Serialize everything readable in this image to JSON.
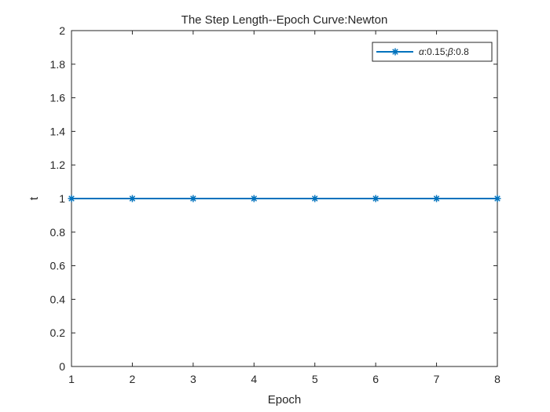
{
  "chart_data": {
    "type": "line",
    "title": "The Step Length--Epoch Curve:Newton",
    "xlabel": "Epoch",
    "ylabel": "t",
    "xlim": [
      1,
      8
    ],
    "ylim": [
      0,
      2
    ],
    "xticks": [
      1,
      2,
      3,
      4,
      5,
      6,
      7,
      8
    ],
    "yticks": [
      0,
      0.2,
      0.4,
      0.6,
      0.8,
      1,
      1.2,
      1.4,
      1.6,
      1.8,
      2
    ],
    "ytick_labels": [
      "0",
      "0.2",
      "0.4",
      "0.6",
      "0.8",
      "1",
      "1.2",
      "1.4",
      "1.6",
      "1.8",
      "2"
    ],
    "grid": false,
    "legend_position": "top-right",
    "series": [
      {
        "name": "α:0.15;β:0.8",
        "name_parts": {
          "alpha_symbol": "α",
          "alpha_value": ":0.15;",
          "beta_symbol": "β",
          "beta_value": ":0.8"
        },
        "color": "#0072BD",
        "marker": "asterisk",
        "x": [
          1,
          2,
          3,
          4,
          5,
          6,
          7,
          8
        ],
        "y": [
          1,
          1,
          1,
          1,
          1,
          1,
          1,
          1
        ]
      }
    ]
  }
}
